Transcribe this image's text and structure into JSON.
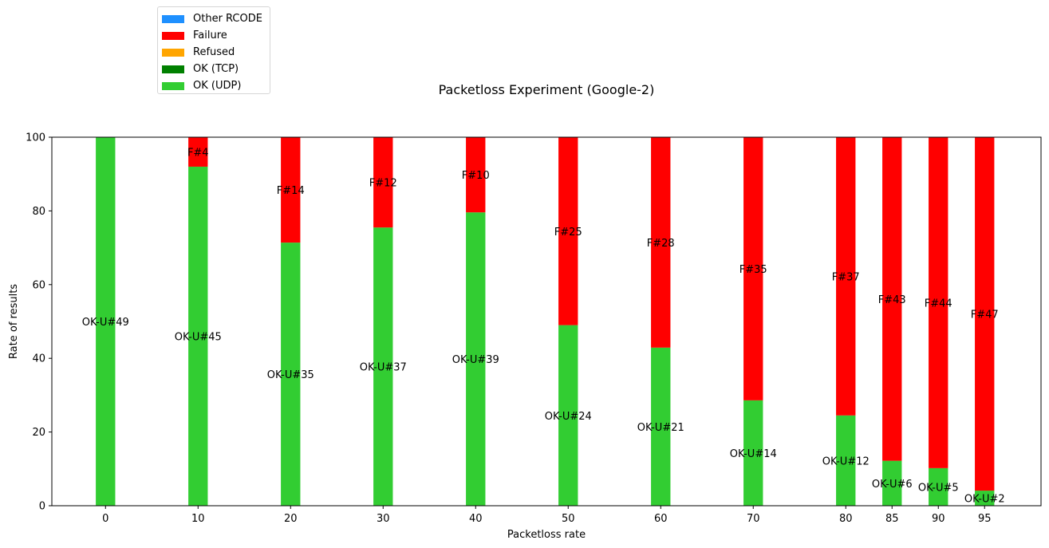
{
  "chart_data": {
    "type": "bar",
    "stacked": true,
    "title": "Packetloss Experiment (Google-2)",
    "xlabel": "Packetloss rate",
    "ylabel": "Rate of results",
    "ylim": [
      0,
      100
    ],
    "yticks": [
      "0",
      "20",
      "40",
      "60",
      "80",
      "100"
    ],
    "categories": [
      "0",
      "10",
      "20",
      "30",
      "40",
      "50",
      "60",
      "70",
      "80",
      "85",
      "90",
      "95"
    ],
    "grid": false,
    "legend_position": "top-left, outside above plot",
    "series": [
      {
        "name": "OK (UDP)",
        "color": "#32cd32",
        "values": [
          100,
          92,
          71.4,
          75.5,
          79.6,
          49,
          42.9,
          28.6,
          24.5,
          12.2,
          10.2,
          4.1
        ],
        "labels": [
          "OK-U#49",
          "OK-U#45",
          "OK-U#35",
          "OK-U#37",
          "OK-U#39",
          "OK-U#24",
          "OK-U#21",
          "OK-U#14",
          "OK-U#12",
          "OK-U#6",
          "OK-U#5",
          "OK-U#2"
        ]
      },
      {
        "name": "OK (TCP)",
        "color": "#008000",
        "values": [
          0,
          0,
          0,
          0,
          0,
          0,
          0,
          0,
          0,
          0,
          0,
          0
        ],
        "labels": []
      },
      {
        "name": "Refused",
        "color": "#ffa500",
        "values": [
          0,
          0,
          0,
          0,
          0,
          0,
          0,
          0,
          0,
          0,
          0,
          0
        ],
        "labels": []
      },
      {
        "name": "Failure",
        "color": "#ff0000",
        "values": [
          0,
          8,
          28.6,
          24.5,
          20.4,
          51,
          57.1,
          71.4,
          75.5,
          87.8,
          89.8,
          95.9
        ],
        "labels": [
          "",
          "F#4",
          "F#14",
          "F#12",
          "F#10",
          "F#25",
          "F#28",
          "F#35",
          "F#37",
          "F#43",
          "F#44",
          "F#47"
        ]
      },
      {
        "name": "Other RCODE",
        "color": "#1e90ff",
        "values": [
          0,
          0,
          0,
          0,
          0,
          0,
          0,
          0,
          0,
          0,
          0,
          0
        ],
        "labels": []
      }
    ],
    "legend_order": [
      "Other RCODE",
      "Failure",
      "Refused",
      "OK (TCP)",
      "OK (UDP)"
    ]
  }
}
